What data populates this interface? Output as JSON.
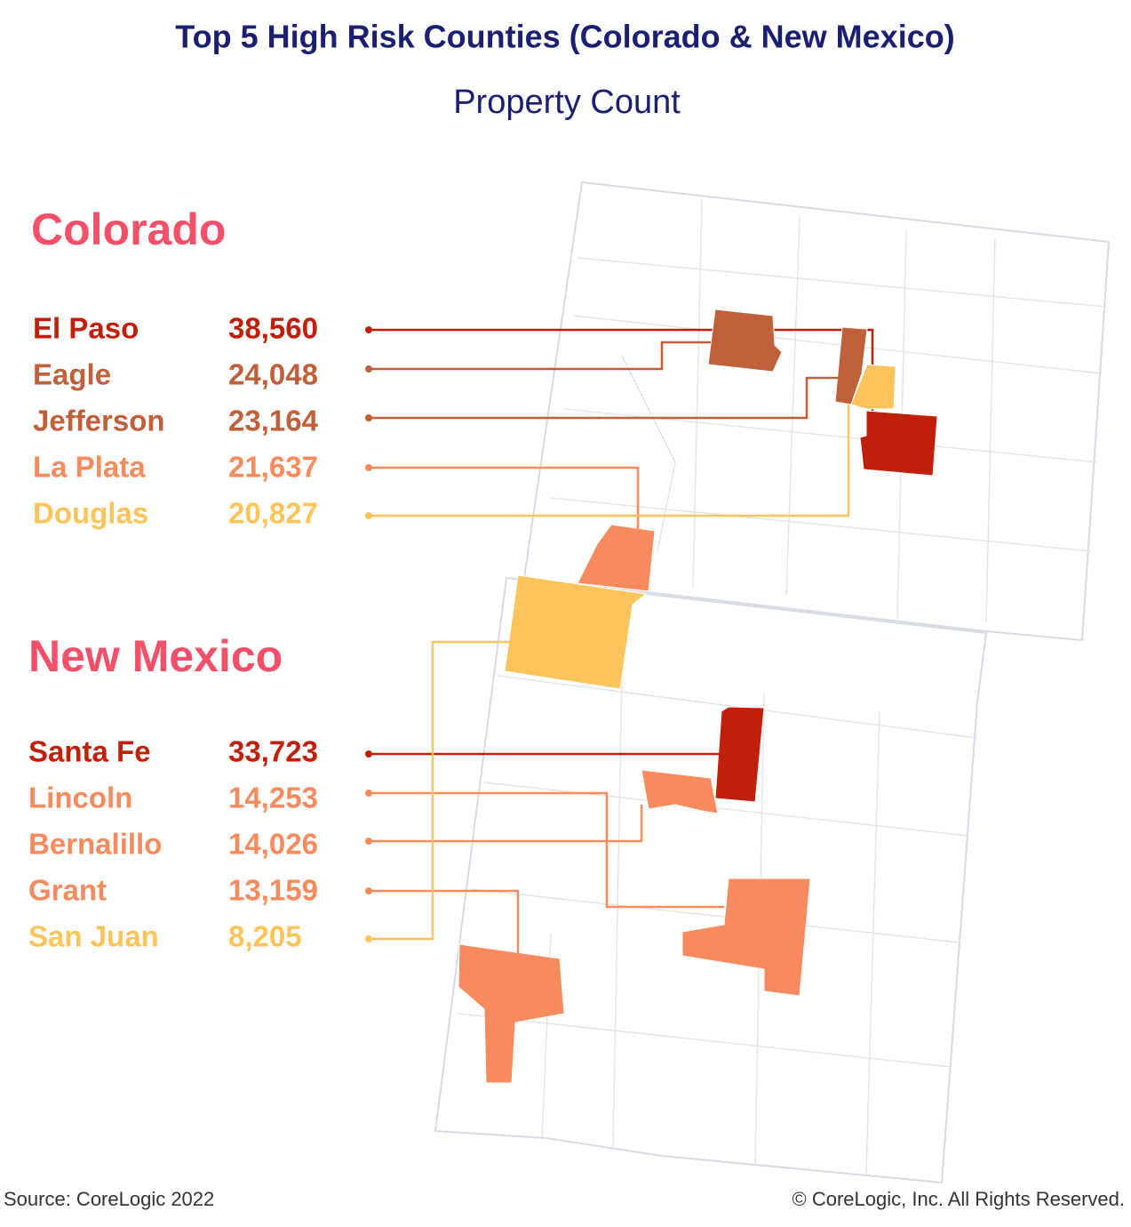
{
  "header": {
    "title": "Top 5 High Risk Counties (Colorado & New Mexico)",
    "subtitle": "Property Count"
  },
  "sections": [
    {
      "state": "Colorado",
      "counties": [
        {
          "name": "El Paso",
          "count": "38,560",
          "color": "#c0200a"
        },
        {
          "name": "Eagle",
          "count": "24,048",
          "color": "#c0603a"
        },
        {
          "name": "Jefferson",
          "count": "23,164",
          "color": "#c0603a"
        },
        {
          "name": "La Plata",
          "count": "21,637",
          "color": "#f78b5e"
        },
        {
          "name": "Douglas",
          "count": "20,827",
          "color": "#fcc45b"
        }
      ]
    },
    {
      "state": "New Mexico",
      "counties": [
        {
          "name": "Santa Fe",
          "count": "33,723",
          "color": "#c0200a"
        },
        {
          "name": "Lincoln",
          "count": "14,253",
          "color": "#f78b5e"
        },
        {
          "name": "Bernalillo",
          "count": "14,026",
          "color": "#f78b5e"
        },
        {
          "name": "Grant",
          "count": "13,159",
          "color": "#f78b5e"
        },
        {
          "name": "San Juan",
          "count": "8,205",
          "color": "#fcc45b"
        }
      ]
    }
  ],
  "footer": {
    "source": "Source: CoreLogic 2022",
    "copyright": "© CoreLogic, Inc. All Rights Reserved."
  }
}
